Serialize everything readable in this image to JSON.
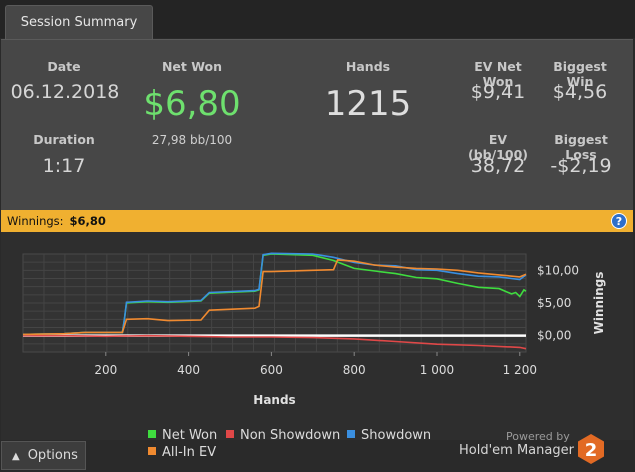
{
  "tab": {
    "label": "Session Summary"
  },
  "summary": {
    "date_label": "Date",
    "date_value": "06.12.2018",
    "duration_label": "Duration",
    "duration_value": "1:17",
    "net_won_label": "Net Won",
    "net_won_value": "$6,80",
    "bb_value": "27,98 bb/100",
    "hands_label": "Hands",
    "hands_value": "1215",
    "ev_net_won_label": "EV Net Won",
    "ev_net_won_value": "$9,41",
    "biggest_win_label": "Biggest Win",
    "biggest_win_value": "$4,56",
    "ev_bb_label": "EV (bb/100)",
    "ev_bb_value": "38,72",
    "biggest_loss_label": "Biggest Loss",
    "biggest_loss_value": "-$2,19"
  },
  "winbar": {
    "label": "Winnings:",
    "value": "$6,80",
    "help": "?"
  },
  "chart_data": {
    "type": "line",
    "xlabel": "Hands",
    "ylabel": "Winnings",
    "xlim": [
      0,
      1215
    ],
    "ylim": [
      -2.5,
      12.5
    ],
    "x_ticks": [
      200,
      400,
      600,
      800,
      1000,
      1200
    ],
    "x_tick_labels": [
      "200",
      "400",
      "600",
      "800",
      "1 000",
      "1 200"
    ],
    "y_ticks": [
      10,
      5,
      0
    ],
    "y_tick_labels": [
      "$10,00",
      "$5,00",
      "$0,00"
    ],
    "grid": true,
    "legend_position": "bottom",
    "series": [
      {
        "name": "Net Won",
        "color": "#3fdc3f",
        "x": [
          0,
          100,
          150,
          240,
          245,
          250,
          300,
          350,
          430,
          450,
          560,
          570,
          580,
          600,
          700,
          750,
          800,
          850,
          900,
          950,
          1000,
          1050,
          1100,
          1150,
          1180,
          1190,
          1200,
          1210,
          1215
        ],
        "y": [
          0.2,
          0.3,
          0.5,
          0.5,
          2.5,
          5.0,
          5.2,
          5.1,
          5.3,
          6.5,
          6.8,
          7.0,
          12.3,
          12.5,
          12.3,
          11.5,
          10.3,
          9.9,
          9.5,
          8.9,
          8.7,
          8.0,
          7.4,
          7.2,
          6.4,
          6.6,
          6.0,
          7.0,
          6.8
        ]
      },
      {
        "name": "Non Showdown",
        "color": "#e04848",
        "x": [
          0,
          100,
          200,
          300,
          400,
          500,
          600,
          700,
          800,
          900,
          1000,
          1100,
          1200,
          1215
        ],
        "y": [
          0,
          0,
          -0.1,
          0,
          -0.1,
          -0.2,
          -0.2,
          -0.3,
          -0.5,
          -0.9,
          -1.3,
          -1.5,
          -1.8,
          -2.0
        ]
      },
      {
        "name": "Showdown",
        "color": "#3a8fe0",
        "x": [
          0,
          100,
          150,
          240,
          245,
          250,
          300,
          350,
          430,
          450,
          560,
          570,
          580,
          600,
          700,
          750,
          800,
          850,
          900,
          950,
          1000,
          1050,
          1100,
          1150,
          1200,
          1215
        ],
        "y": [
          0.2,
          0.3,
          0.5,
          0.5,
          2.5,
          5.1,
          5.3,
          5.2,
          5.4,
          6.6,
          6.9,
          7.1,
          12.4,
          12.6,
          12.5,
          12.0,
          11.2,
          10.8,
          10.7,
          10.1,
          10.0,
          9.5,
          9.1,
          9.0,
          8.6,
          9.3
        ]
      },
      {
        "name": "All-In EV",
        "color": "#f08a30",
        "x": [
          0,
          100,
          150,
          240,
          245,
          250,
          300,
          350,
          430,
          450,
          560,
          570,
          580,
          600,
          700,
          750,
          760,
          800,
          850,
          900,
          950,
          1000,
          1050,
          1100,
          1150,
          1200,
          1215
        ],
        "y": [
          0.2,
          0.3,
          0.5,
          0.5,
          1.5,
          2.5,
          2.6,
          2.3,
          2.4,
          3.9,
          4.2,
          4.5,
          9.8,
          9.8,
          10.0,
          10.1,
          11.6,
          11.4,
          10.8,
          10.5,
          10.3,
          10.2,
          10.0,
          9.6,
          9.3,
          9.0,
          9.4
        ]
      }
    ]
  },
  "footer": {
    "options_label": "Options",
    "powered_by": "Powered by",
    "product": "Hold'em Manager",
    "logo_digit": "2"
  }
}
